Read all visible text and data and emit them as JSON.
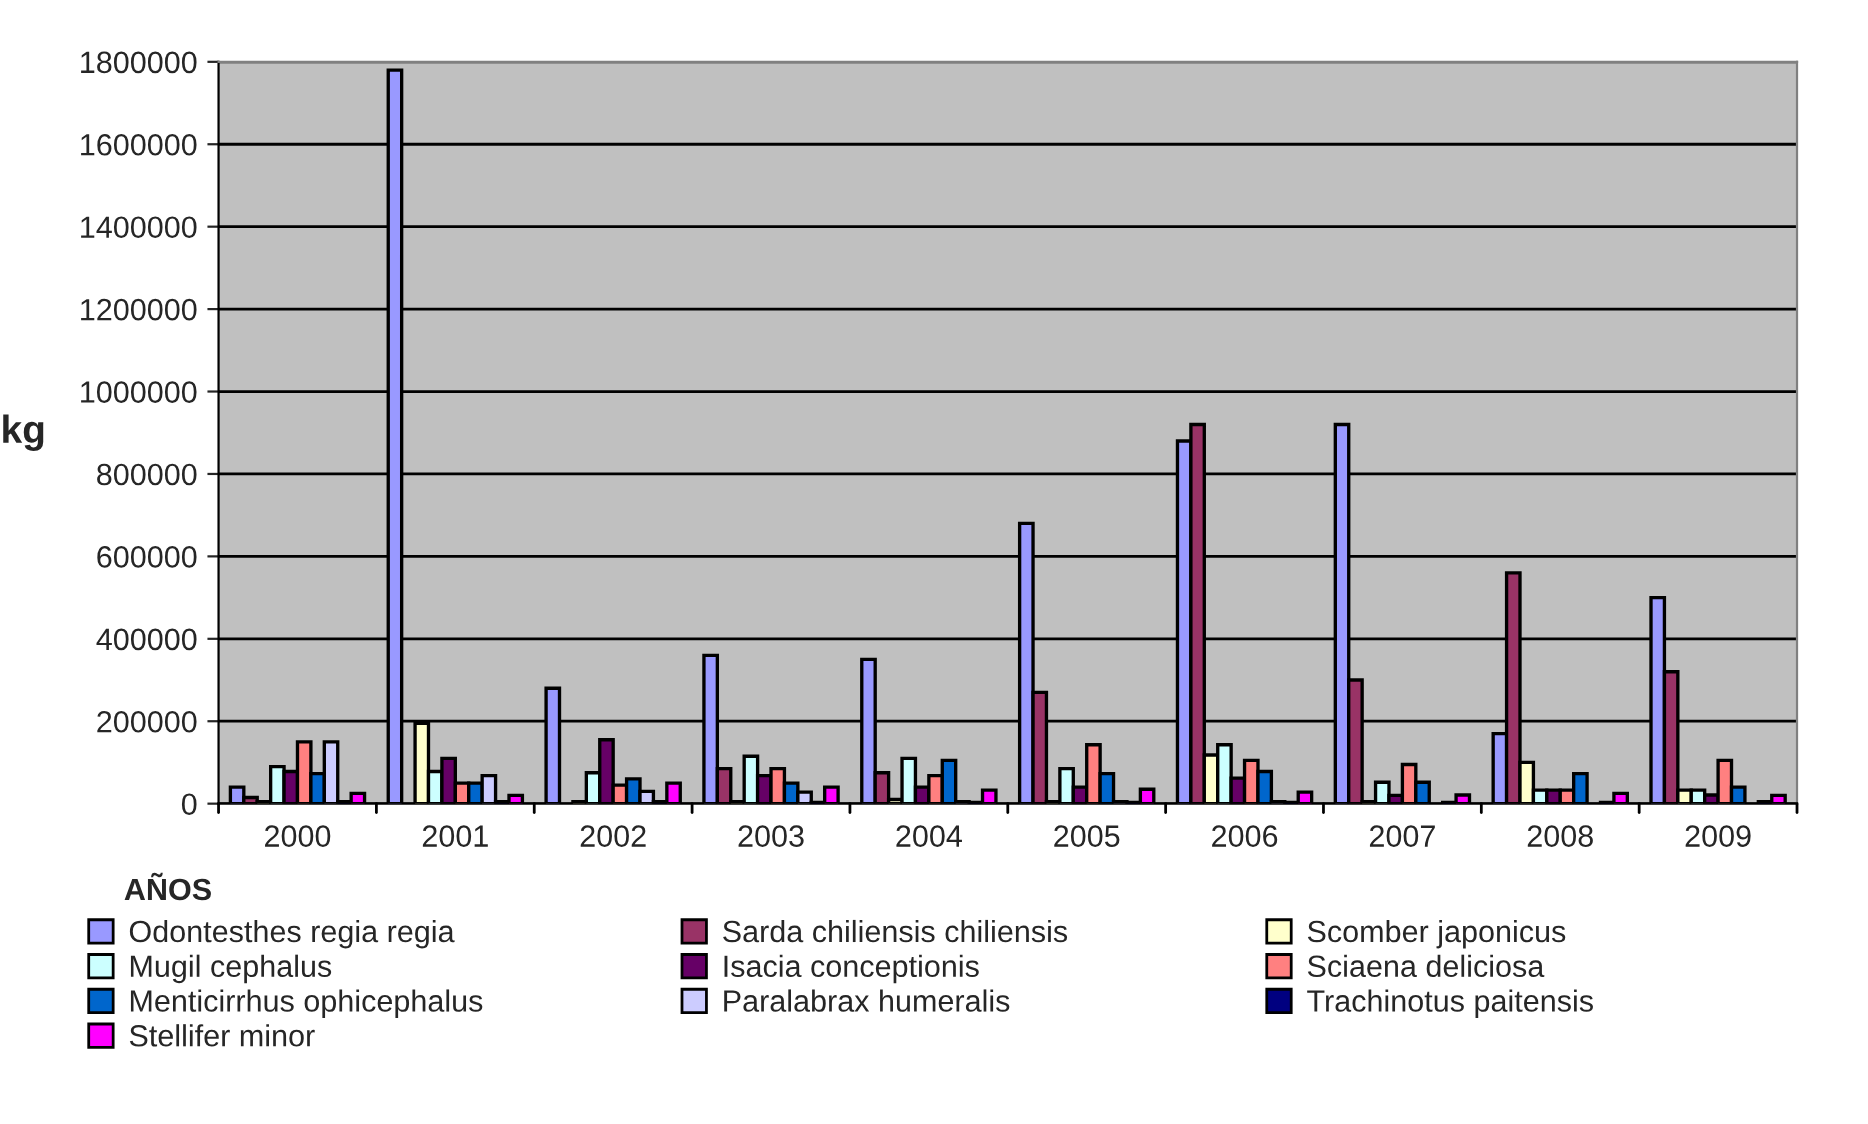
{
  "chart_data": {
    "type": "bar",
    "xlabel": "AÑOS",
    "ylabel": "kg",
    "categories": [
      "2000",
      "2001",
      "2002",
      "2003",
      "2004",
      "2005",
      "2006",
      "2007",
      "2008",
      "2009"
    ],
    "ylim": [
      0,
      1800000
    ],
    "yticks": [
      0,
      200000,
      400000,
      600000,
      800000,
      1000000,
      1200000,
      1400000,
      1600000,
      1800000
    ],
    "grid": "y",
    "legend": "bottom",
    "series": [
      {
        "name": "Odontesthes regia regia",
        "color": "#9999ff",
        "values": [
          40000,
          1780000,
          280000,
          360000,
          350000,
          680000,
          880000,
          920000,
          170000,
          500000
        ]
      },
      {
        "name": "Sarda chiliensis chiliensis",
        "color": "#993366",
        "values": [
          15000,
          null,
          null,
          85000,
          75000,
          270000,
          920000,
          300000,
          560000,
          320000
        ]
      },
      {
        "name": "Scomber japonicus",
        "color": "#ffffcc",
        "values": [
          5000,
          195000,
          5000,
          5000,
          10000,
          5000,
          118000,
          5000,
          100000,
          33000
        ]
      },
      {
        "name": "Mugil cephalus",
        "color": "#ccffff",
        "values": [
          90000,
          78000,
          75000,
          115000,
          110000,
          85000,
          143000,
          52000,
          33000,
          33000
        ]
      },
      {
        "name": "Isacia conceptionis",
        "color": "#660066",
        "values": [
          78000,
          110000,
          155000,
          68000,
          40000,
          40000,
          62000,
          20000,
          33000,
          21000
        ]
      },
      {
        "name": "Sciaena deliciosa",
        "color": "#ff8080",
        "values": [
          150000,
          50000,
          45000,
          85000,
          68000,
          143000,
          105000,
          95000,
          33000,
          105000
        ]
      },
      {
        "name": "Menticirrhus ophicephalus",
        "color": "#0066cc",
        "values": [
          73000,
          50000,
          60000,
          50000,
          105000,
          73000,
          78000,
          52000,
          73000,
          40000
        ]
      },
      {
        "name": "Paralabrax humeralis",
        "color": "#ccccff",
        "values": [
          150000,
          68000,
          30000,
          28000,
          5000,
          5000,
          5000,
          null,
          null,
          null
        ]
      },
      {
        "name": "Trachinotus paitensis",
        "color": "#000080",
        "values": [
          5000,
          5000,
          5000,
          3000,
          3000,
          3000,
          3000,
          3000,
          3000,
          5000
        ]
      },
      {
        "name": "Stellifer minor",
        "color": "#ff00ff",
        "values": [
          25000,
          20000,
          50000,
          40000,
          33000,
          35000,
          28000,
          21000,
          25000,
          20000
        ]
      }
    ]
  }
}
